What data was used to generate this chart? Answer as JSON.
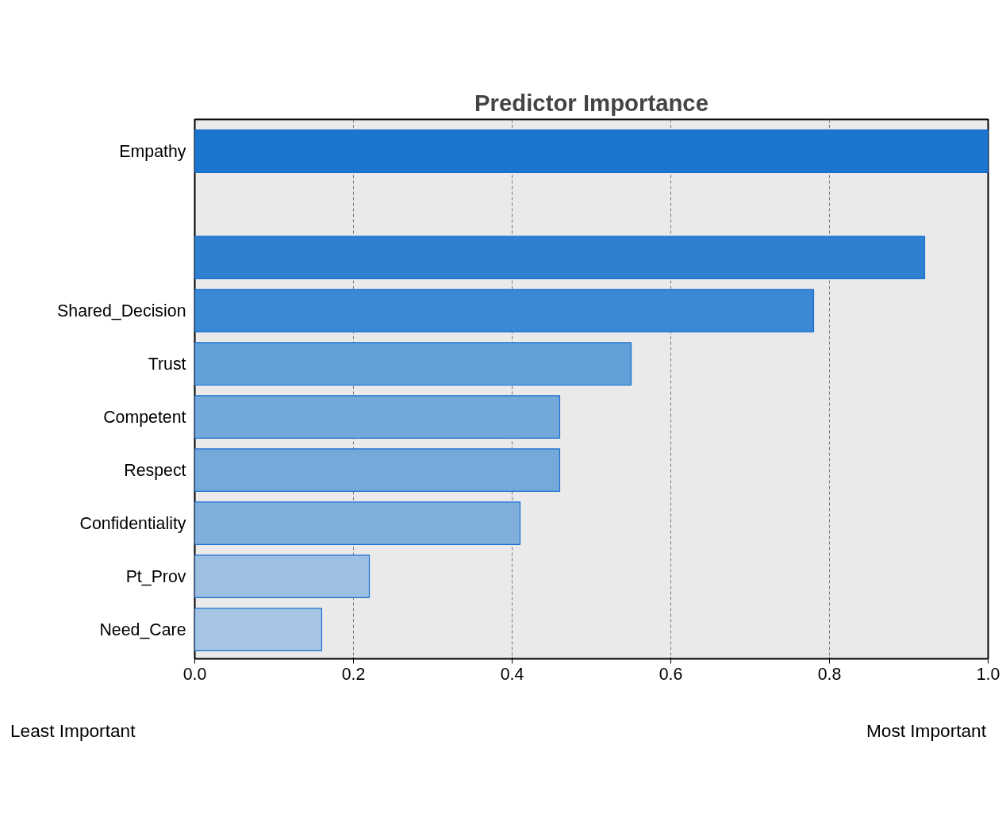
{
  "chart_data": {
    "type": "bar",
    "orientation": "horizontal",
    "title": "Predictor Importance",
    "categories": [
      "Empathy",
      null,
      null,
      "Shared_Decision",
      "Trust",
      "Competent",
      "Respect",
      "Confidentiality",
      "Pt_Prov",
      "Need_Care"
    ],
    "values": [
      1.0,
      null,
      0.92,
      0.78,
      0.55,
      0.46,
      0.46,
      0.41,
      0.22,
      0.16
    ],
    "colors": [
      "#1a75cf",
      null,
      "#2f80d0",
      "#3b88d4",
      "#62a0d9",
      "#72a8da",
      "#74a9da",
      "#80afdc",
      "#9cbfe2",
      "#a6c4e3"
    ],
    "xlim": [
      0,
      1.0
    ],
    "xticks": [
      {
        "value": 0,
        "label": "0.0"
      },
      {
        "value": 0.2,
        "label": "0.2"
      },
      {
        "value": 0.4,
        "label": "0.4"
      },
      {
        "value": 0.6,
        "label": "0.6"
      },
      {
        "value": 0.8,
        "label": "0.8"
      },
      {
        "value": 1.0,
        "label": "1.0"
      }
    ],
    "grid": "x",
    "annotations": [
      "Least Important",
      "Most Important"
    ]
  }
}
